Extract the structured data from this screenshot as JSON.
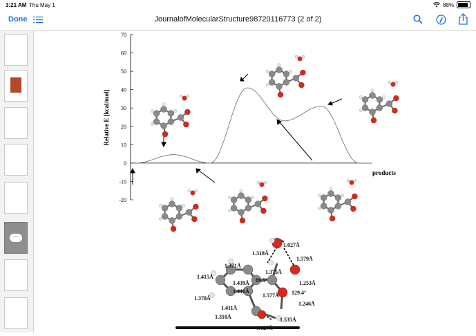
{
  "status": {
    "time": "3:21 AM",
    "date": "Thu May 1",
    "battery": "88%",
    "battery_level": 0.88
  },
  "toolbar": {
    "done_label": "Done",
    "title": "JournalofMolecularStructure98720116773 (2 of 2)",
    "icons": [
      "list-icon",
      "search-icon",
      "markup-icon",
      "share-icon"
    ]
  },
  "sidebar": {
    "thumbnail_count": 8,
    "active_index": 5
  },
  "chart_data": {
    "type": "line",
    "ylabel": "Relative E [kcal/mol]",
    "xlabel_right": "products",
    "ylim": [
      -20,
      70
    ],
    "yticks": [
      "70",
      "60",
      "50",
      "40",
      "30",
      "20",
      "10",
      "0",
      "-10",
      "-20"
    ],
    "series": [
      {
        "points": [
          {
            "x": 0,
            "y": 0
          },
          {
            "x": 1,
            "y": 4.6
          },
          {
            "x": 2,
            "y": 0
          },
          {
            "x": 3,
            "y": 41
          },
          {
            "x": 4,
            "y": 23
          },
          {
            "x": 5,
            "y": 31
          },
          {
            "x": 6,
            "y": 0
          }
        ]
      }
    ]
  },
  "structure_labels": [
    "1.027Å",
    "1.318Å",
    "1.579Å",
    "1.371Å",
    "1.375Å",
    "1.415Å",
    "1.439Å",
    "89.5°",
    "1.253Å",
    "1.441Å",
    "1.577Å",
    "129.4°",
    "1.378Å",
    "1.411Å",
    "1.246Å",
    "1.310Å",
    "1.535Å",
    "1.027Å"
  ],
  "colors": {
    "accent": "#1a73e8",
    "oxygen": "#d42a1f",
    "carbon": "#8a8a8a",
    "hydrogen": "#e8e8e8"
  }
}
